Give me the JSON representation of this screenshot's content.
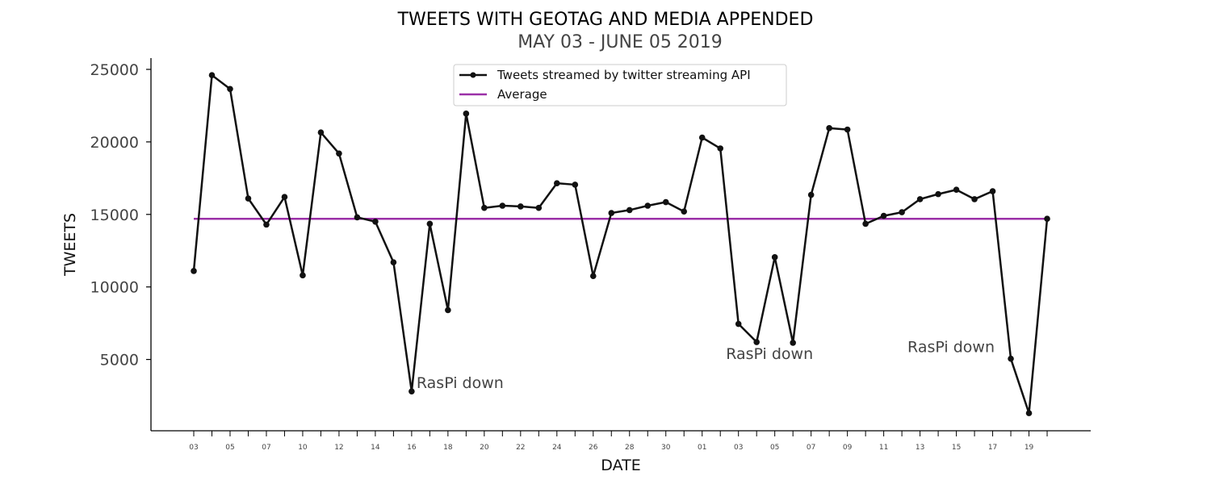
{
  "chart_data": {
    "type": "line",
    "title": "TWEETS WITH GEOTAG AND MEDIA APPENDED",
    "subtitle": "MAY 03 - JUNE 05 2019",
    "xlabel": "DATE",
    "ylabel": "TWEETS",
    "ylim": [
      0,
      25800
    ],
    "yticks": [
      5000,
      10000,
      15000,
      20000,
      25000
    ],
    "xtick_labels": [
      "03",
      "05",
      "07",
      "10",
      "12",
      "14",
      "16",
      "18",
      "20",
      "22",
      "24",
      "26",
      "28",
      "30",
      "01",
      "03",
      "05",
      "07",
      "09",
      "11",
      "13",
      "15",
      "17",
      "19"
    ],
    "grid": false,
    "legend_placement": "top-center",
    "series": [
      {
        "name": "Tweets streamed by twitter streaming API",
        "color": "#111111",
        "values": [
          11100,
          24600,
          23650,
          16100,
          14300,
          16200,
          10800,
          20650,
          19200,
          14800,
          14500,
          11700,
          2800,
          14350,
          8400,
          21950,
          15450,
          15600,
          15550,
          15450,
          17150,
          17050,
          10750,
          15100,
          15300,
          15600,
          15850,
          15200,
          20300,
          19550,
          7450,
          6200,
          12050,
          6150,
          16350,
          20950,
          20850,
          14350,
          14900,
          15150,
          16050,
          16400,
          16700,
          16050,
          16600,
          5050,
          1300,
          14700
        ]
      },
      {
        "name": "Average",
        "color": "#9b30a8",
        "value": 14700
      }
    ],
    "annotations": [
      {
        "text": "RasPi down",
        "index": 12
      },
      {
        "text": "RasPi down",
        "index": 31
      },
      {
        "text": "RasPi down",
        "index": 45
      }
    ]
  }
}
